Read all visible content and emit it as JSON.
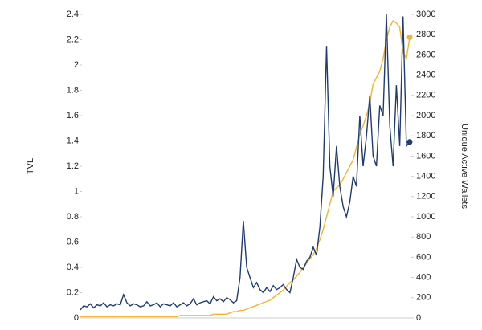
{
  "chart_data": {
    "type": "line",
    "y_label": "TVL",
    "y2_label": "Unique Active Wallets",
    "ylim": [
      0,
      2.4
    ],
    "yticks": [
      0,
      0.2,
      0.4,
      0.6,
      0.8,
      1,
      1.2,
      1.4,
      1.6,
      1.8,
      2,
      2.2,
      2.4
    ],
    "y2lim": [
      0,
      3000
    ],
    "y2ticks": [
      0,
      200,
      400,
      600,
      800,
      1000,
      1200,
      1400,
      1600,
      1800,
      2000,
      2200,
      2400,
      2600,
      2800,
      3000
    ],
    "series": [
      {
        "color": "#f2b431",
        "values": [
          0.01,
          0.01,
          0.01,
          0.01,
          0.01,
          0.01,
          0.01,
          0.01,
          0.01,
          0.01,
          0.01,
          0.01,
          0.01,
          0.01,
          0.01,
          0.01,
          0.01,
          0.01,
          0.01,
          0.01,
          0.01,
          0.01,
          0.01,
          0.01,
          0.01,
          0.01,
          0.01,
          0.01,
          0.01,
          0.01,
          0.02,
          0.02,
          0.02,
          0.02,
          0.02,
          0.02,
          0.02,
          0.02,
          0.02,
          0.02,
          0.03,
          0.03,
          0.03,
          0.03,
          0.03,
          0.04,
          0.05,
          0.05,
          0.06,
          0.06,
          0.07,
          0.08,
          0.09,
          0.1,
          0.11,
          0.12,
          0.13,
          0.14,
          0.16,
          0.18,
          0.2,
          0.22,
          0.25,
          0.28,
          0.3,
          0.33,
          0.36,
          0.4,
          0.43,
          0.47,
          0.5,
          0.55,
          0.62,
          0.7,
          0.8,
          0.9,
          1.0,
          1.03,
          1.05,
          1.1,
          1.15,
          1.2,
          1.25,
          1.35,
          1.45,
          1.52,
          1.6,
          1.7,
          1.85,
          1.9,
          1.95,
          2.05,
          2.2,
          2.3,
          2.35,
          2.33,
          2.3,
          2.1,
          2.05,
          2.22
        ]
      },
      {
        "color": "#1f3b73",
        "axis": "y2",
        "values": [
          80,
          120,
          110,
          140,
          100,
          130,
          120,
          150,
          110,
          130,
          120,
          140,
          130,
          230,
          150,
          120,
          140,
          130,
          110,
          120,
          160,
          120,
          130,
          150,
          110,
          140,
          130,
          120,
          150,
          110,
          130,
          150,
          120,
          140,
          190,
          130,
          150,
          160,
          170,
          140,
          210,
          170,
          190,
          160,
          200,
          180,
          150,
          170,
          400,
          960,
          500,
          400,
          300,
          350,
          280,
          250,
          300,
          260,
          320,
          280,
          300,
          330,
          280,
          250,
          400,
          580,
          500,
          480,
          560,
          600,
          700,
          620,
          900,
          1400,
          2690,
          1500,
          1200,
          1700,
          1300,
          1100,
          1000,
          1150,
          1400,
          1300,
          2000,
          1500,
          1800,
          2200,
          1600,
          1500,
          2100,
          2000,
          3000,
          1900,
          1500,
          2300,
          1700,
          2980,
          1700,
          1740
        ]
      }
    ]
  }
}
